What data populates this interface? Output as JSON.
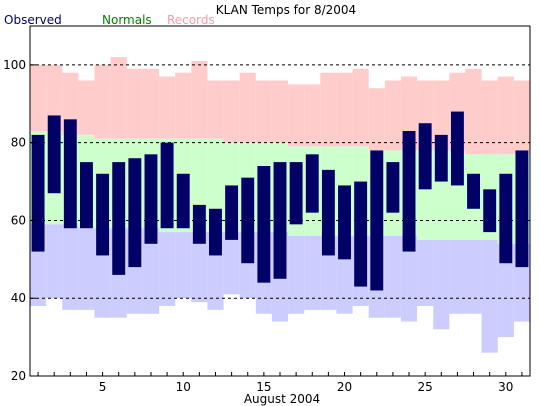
{
  "chart_data": {
    "type": "bar",
    "title": "KLAN Temps for 8/2004",
    "xlabel": "August 2004",
    "ylabel": "",
    "ylim": [
      20,
      110
    ],
    "xlim": [
      0.5,
      31.5
    ],
    "y_ticks": [
      20,
      40,
      60,
      80,
      100
    ],
    "y_gridlines": [
      40,
      60,
      80,
      100
    ],
    "x_ticks": [
      5,
      10,
      15,
      20,
      25,
      30
    ],
    "legend": {
      "placement": "top-left",
      "entries": [
        "Observed",
        "Normals",
        "Records"
      ]
    },
    "colors": {
      "observed": "#000066",
      "normals": "#ccffcc",
      "records_high": "#ffcccc",
      "records_low": "#ccccff",
      "gridline": "#000000"
    },
    "days": [
      1,
      2,
      3,
      4,
      5,
      6,
      7,
      8,
      9,
      10,
      11,
      12,
      13,
      14,
      15,
      16,
      17,
      18,
      19,
      20,
      21,
      22,
      23,
      24,
      25,
      26,
      27,
      28,
      29,
      30,
      31
    ],
    "series": [
      {
        "name": "Observed",
        "high": [
          82,
          87,
          86,
          75,
          72,
          75,
          76,
          77,
          80,
          72,
          64,
          63,
          69,
          71,
          74,
          75,
          75,
          77,
          73,
          69,
          70,
          78,
          75,
          83,
          85,
          82,
          88,
          72,
          68,
          72,
          78
        ],
        "low": [
          52,
          67,
          58,
          58,
          51,
          46,
          48,
          54,
          58,
          58,
          54,
          51,
          55,
          49,
          44,
          45,
          59,
          62,
          51,
          50,
          43,
          42,
          62,
          52,
          68,
          70,
          69,
          63,
          57,
          49,
          48
        ]
      },
      {
        "name": "Normals",
        "high": [
          83,
          83,
          82,
          82,
          81,
          81,
          81,
          81,
          81,
          81,
          81,
          81,
          80,
          80,
          80,
          80,
          79,
          79,
          79,
          79,
          79,
          78,
          78,
          78,
          78,
          78,
          78,
          77,
          77,
          77,
          77
        ],
        "low": [
          59,
          59,
          59,
          58,
          58,
          58,
          58,
          58,
          57,
          57,
          57,
          57,
          57,
          57,
          57,
          57,
          56,
          56,
          56,
          56,
          56,
          56,
          56,
          56,
          55,
          55,
          55,
          55,
          55,
          54,
          54
        ]
      },
      {
        "name": "Records",
        "high": [
          100,
          100,
          98,
          96,
          100,
          102,
          99,
          99,
          97,
          98,
          101,
          96,
          96,
          98,
          96,
          96,
          95,
          95,
          98,
          98,
          99,
          94,
          96,
          97,
          96,
          96,
          98,
          99,
          96,
          97,
          96
        ],
        "low": [
          38,
          40,
          37,
          37,
          35,
          35,
          36,
          36,
          38,
          40,
          39,
          37,
          41,
          40,
          36,
          34,
          36,
          37,
          37,
          36,
          38,
          35,
          35,
          34,
          38,
          32,
          36,
          36,
          26,
          30,
          34
        ]
      }
    ]
  }
}
